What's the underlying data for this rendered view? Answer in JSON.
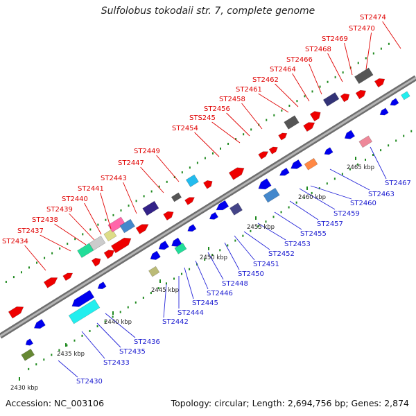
{
  "title": "Sulfolobus tokodaii str. 7, complete genome",
  "accession": "Accession: NC_003106",
  "topology": "Topology: circular; Length: 2,694,756 bp; Genes: 2,874",
  "colors": {
    "forward": "#ee0000",
    "reverse": "#0000ee",
    "backbone": "#8c8c8c",
    "tick": "#1f8a1f"
  },
  "kbp_marks": [
    "2430 kbp",
    "2435 kbp",
    "2440 kbp",
    "2445 kbp",
    "2450 kbp",
    "2455 kbp",
    "2460 kbp",
    "2465 kbp"
  ],
  "forward_labels": [
    "ST2434",
    "ST2437",
    "ST2438",
    "ST2439",
    "ST2440",
    "ST2441",
    "ST2443",
    "ST2447",
    "ST2449",
    "ST2454",
    "STS245",
    "ST2456",
    "ST2458",
    "ST2461",
    "ST2462",
    "ST2464",
    "ST2466",
    "ST2468",
    "ST2469",
    "ST2470",
    "ST2474"
  ],
  "reverse_labels": [
    "ST2430",
    "ST2433",
    "ST2435",
    "ST2436",
    "ST2442",
    "ST2444",
    "ST2445",
    "ST2446",
    "ST2448",
    "ST2450",
    "ST2451",
    "ST2452",
    "ST2453",
    "ST2455",
    "ST2457",
    "ST2459",
    "ST2460",
    "ST2463",
    "ST2467"
  ]
}
